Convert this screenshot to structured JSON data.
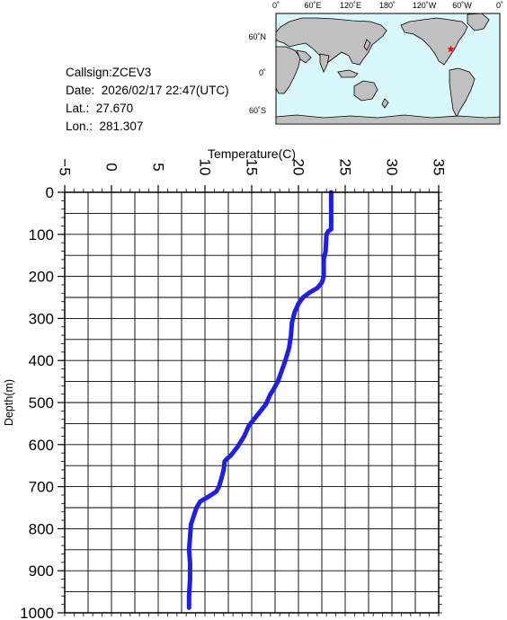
{
  "info": {
    "callsign_label": "Callsign:",
    "callsign": "ZCEV3",
    "date_label": "Date:",
    "date": "2026/02/17 22:47(UTC)",
    "lat_label": "Lat.:",
    "lat": "27.670",
    "lon_label": "Lon.:",
    "lon": "281.307"
  },
  "map": {
    "top_labels": [
      "0˚",
      "60˚E",
      "120˚E",
      "180˚",
      "120˚W",
      "60˚W",
      "0˚"
    ],
    "left_labels": [
      "60˚N",
      "0˚",
      "60˚S"
    ],
    "ocean_color": "#d8f8fc",
    "land_color": "#c0c0c0",
    "marker_color": "#ff0000",
    "marker_symbol": "star",
    "marker_lat": 27.67,
    "marker_lon": 281.307
  },
  "chart_data": {
    "type": "line",
    "xlabel": "Temperature(C)",
    "ylabel": "Depth(m)",
    "xlim": [
      -5,
      35
    ],
    "ylim": [
      0,
      1000
    ],
    "y_inverted": true,
    "x_ticks": [
      -5,
      0,
      5,
      10,
      15,
      20,
      25,
      30,
      35
    ],
    "y_ticks": [
      0,
      100,
      200,
      300,
      400,
      500,
      600,
      700,
      800,
      900,
      1000
    ],
    "grid": true,
    "line_color": "#1e1ee6",
    "series": [
      {
        "points": [
          [
            23.5,
            0
          ],
          [
            23.5,
            50
          ],
          [
            23.5,
            88
          ],
          [
            23.2,
            92
          ],
          [
            23.0,
            100
          ],
          [
            22.9,
            140
          ],
          [
            22.7,
            160
          ],
          [
            22.7,
            200
          ],
          [
            22.5,
            215
          ],
          [
            22.0,
            228
          ],
          [
            21.2,
            238
          ],
          [
            20.5,
            250
          ],
          [
            20.0,
            265
          ],
          [
            19.6,
            285
          ],
          [
            19.3,
            310
          ],
          [
            19.2,
            340
          ],
          [
            19.0,
            370
          ],
          [
            18.6,
            400
          ],
          [
            18.2,
            425
          ],
          [
            17.8,
            450
          ],
          [
            17.3,
            470
          ],
          [
            17.0,
            480
          ],
          [
            16.5,
            505
          ],
          [
            15.6,
            530
          ],
          [
            14.7,
            555
          ],
          [
            14.2,
            580
          ],
          [
            13.5,
            605
          ],
          [
            12.8,
            625
          ],
          [
            12.3,
            635
          ],
          [
            12.1,
            640
          ],
          [
            12.0,
            660
          ],
          [
            11.7,
            685
          ],
          [
            11.5,
            700
          ],
          [
            11.2,
            712
          ],
          [
            10.3,
            725
          ],
          [
            9.5,
            735
          ],
          [
            9.1,
            750
          ],
          [
            8.8,
            770
          ],
          [
            8.5,
            790
          ],
          [
            8.4,
            820
          ],
          [
            8.3,
            850
          ],
          [
            8.4,
            880
          ],
          [
            8.4,
            920
          ],
          [
            8.3,
            960
          ],
          [
            8.3,
            988
          ]
        ]
      }
    ]
  }
}
